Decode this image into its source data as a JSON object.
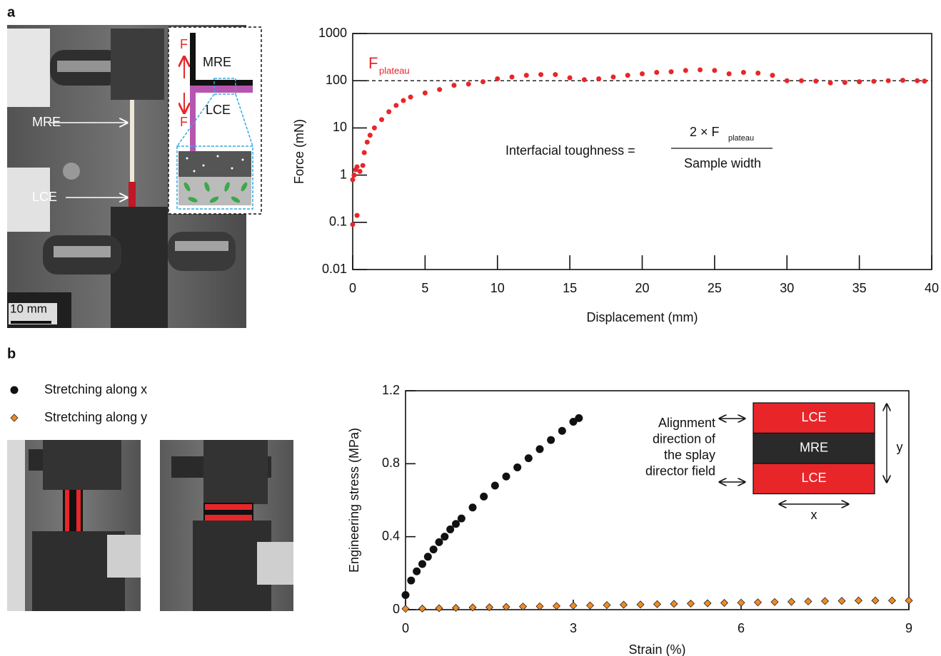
{
  "panel_labels": [
    "a",
    "b"
  ],
  "photo_a": {
    "arrow_labels": [
      "MRE",
      "LCE"
    ],
    "scale_bar": "10 mm",
    "inset": {
      "force": [
        "F",
        "F"
      ],
      "top": "MRE",
      "bottom": "LCE"
    }
  },
  "chart_data": [
    {
      "type": "scatter",
      "xlabel": "Displacement (mm)",
      "ylabel": "Force (mN)",
      "xlim": [
        0,
        40
      ],
      "xticks": [
        0,
        5,
        10,
        15,
        20,
        25,
        30,
        35,
        40
      ],
      "ylim": [
        0.01,
        1000
      ],
      "yticks": [
        0.01,
        0.1,
        1,
        10,
        100,
        1000
      ],
      "log_y": true,
      "color": "#e8262a",
      "plateau_line": 100,
      "annotation": {
        "symbol": "F",
        "subscript": "plateau"
      },
      "equation": {
        "left": "Interfacial toughness =",
        "numerator": "2 × F",
        "numerator_subscript": "plateau",
        "denominator": "Sample width"
      },
      "x": [
        0,
        0.3,
        0,
        0.1,
        0.2,
        0.3,
        0.5,
        0.7,
        0.8,
        1,
        1.2,
        1.5,
        2,
        2.5,
        3,
        3.5,
        4,
        5,
        6,
        7,
        8,
        9,
        10,
        11,
        12,
        13,
        14,
        15,
        16,
        17,
        18,
        19,
        20,
        21,
        22,
        23,
        24,
        25,
        26,
        27,
        28,
        29,
        30,
        31,
        32,
        33,
        34,
        35,
        36,
        37,
        38,
        39,
        39.5
      ],
      "values": [
        0.09,
        0.14,
        0.8,
        1,
        1.3,
        1.5,
        1.2,
        1.6,
        3,
        5,
        7,
        10,
        15,
        22,
        30,
        38,
        45,
        55,
        65,
        80,
        85,
        95,
        110,
        120,
        130,
        135,
        135,
        115,
        105,
        110,
        120,
        130,
        140,
        150,
        155,
        165,
        170,
        165,
        140,
        150,
        145,
        130,
        100,
        100,
        98,
        90,
        92,
        95,
        97,
        100,
        102,
        100,
        98
      ]
    },
    {
      "type": "scatter",
      "xlabel": "Strain (%)",
      "ylabel": "Engineering stress (MPa)",
      "xlim": [
        0,
        9
      ],
      "xticks": [
        0,
        3,
        6,
        9
      ],
      "ylim": [
        0,
        1.2
      ],
      "yticks": [
        0,
        0.4,
        0.8,
        1.2
      ],
      "log_y": false,
      "series": [
        {
          "name": "Stretching along x",
          "color": "#111111",
          "marker": "circle",
          "x": [
            0,
            0.1,
            0.2,
            0.3,
            0.4,
            0.5,
            0.6,
            0.7,
            0.8,
            0.9,
            1.0,
            1.2,
            1.4,
            1.6,
            1.8,
            2.0,
            2.2,
            2.4,
            2.6,
            2.8,
            3.0,
            3.1
          ],
          "values": [
            0.08,
            0.16,
            0.21,
            0.25,
            0.29,
            0.33,
            0.37,
            0.4,
            0.44,
            0.47,
            0.5,
            0.56,
            0.62,
            0.68,
            0.73,
            0.78,
            0.83,
            0.88,
            0.93,
            0.98,
            1.03,
            1.05
          ]
        },
        {
          "name": "Stretching along y",
          "color": "#f08a24",
          "marker": "diamond",
          "x": [
            0,
            0.3,
            0.6,
            0.9,
            1.2,
            1.5,
            1.8,
            2.1,
            2.4,
            2.7,
            3.0,
            3.3,
            3.6,
            3.9,
            4.2,
            4.5,
            4.8,
            5.1,
            5.4,
            5.7,
            6.0,
            6.3,
            6.6,
            6.9,
            7.2,
            7.5,
            7.8,
            8.1,
            8.4,
            8.7,
            9.0
          ],
          "values": [
            0.005,
            0.006,
            0.008,
            0.01,
            0.012,
            0.013,
            0.015,
            0.017,
            0.018,
            0.02,
            0.022,
            0.023,
            0.025,
            0.027,
            0.028,
            0.03,
            0.032,
            0.033,
            0.035,
            0.037,
            0.038,
            0.04,
            0.042,
            0.043,
            0.045,
            0.047,
            0.048,
            0.05,
            0.05,
            0.05,
            0.05
          ]
        }
      ],
      "inset": {
        "layers": [
          "LCE",
          "MRE",
          "LCE"
        ],
        "note": [
          "Alignment",
          "direction of",
          "the splay",
          "director field"
        ],
        "x_axis": "x",
        "y_axis": "y"
      }
    }
  ]
}
